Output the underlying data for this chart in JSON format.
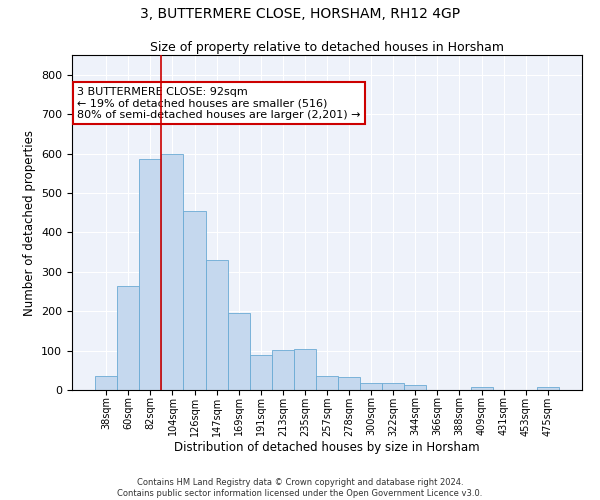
{
  "title": "3, BUTTERMERE CLOSE, HORSHAM, RH12 4GP",
  "subtitle": "Size of property relative to detached houses in Horsham",
  "xlabel": "Distribution of detached houses by size in Horsham",
  "ylabel": "Number of detached properties",
  "bar_color": "#c5d8ee",
  "bar_edge_color": "#6aaad4",
  "background_color": "#eef2fa",
  "grid_color": "#ffffff",
  "categories": [
    "38sqm",
    "60sqm",
    "82sqm",
    "104sqm",
    "126sqm",
    "147sqm",
    "169sqm",
    "191sqm",
    "213sqm",
    "235sqm",
    "257sqm",
    "278sqm",
    "300sqm",
    "322sqm",
    "344sqm",
    "366sqm",
    "388sqm",
    "409sqm",
    "431sqm",
    "453sqm",
    "475sqm"
  ],
  "values": [
    35,
    265,
    585,
    600,
    455,
    330,
    195,
    90,
    102,
    105,
    35,
    32,
    17,
    17,
    13,
    0,
    0,
    7,
    0,
    0,
    8
  ],
  "red_line_x": 2,
  "annotation_text": "3 BUTTERMERE CLOSE: 92sqm\n← 19% of detached houses are smaller (516)\n80% of semi-detached houses are larger (2,201) →",
  "annotation_box_color": "#ffffff",
  "annotation_border_color": "#cc0000",
  "red_line_color": "#cc0000",
  "ylim": [
    0,
    850
  ],
  "yticks": [
    0,
    100,
    200,
    300,
    400,
    500,
    600,
    700,
    800
  ],
  "footnote": "Contains HM Land Registry data © Crown copyright and database right 2024.\nContains public sector information licensed under the Open Government Licence v3.0."
}
